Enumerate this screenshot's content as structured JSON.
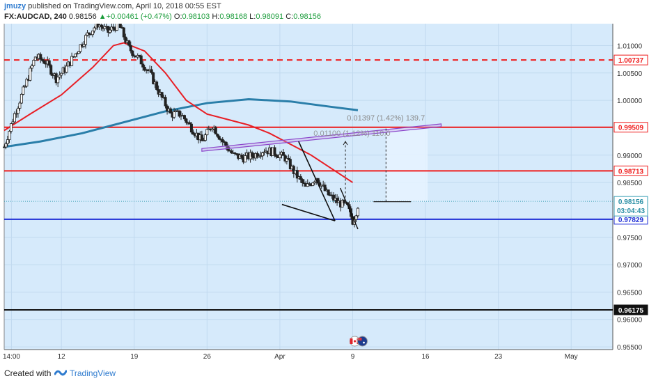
{
  "header": {
    "author": "jmuzy",
    "published": "published on TradingView.com, April 10, 2018 00:55 EST",
    "symbol": "FX:AUDCAD, 240",
    "last": "0.98156",
    "change": "+0.00461 (+0.47%)",
    "o_label": "O:",
    "o_value": "0.98103",
    "h_label": "H:",
    "h_value": "0.98168",
    "l_label": "L:",
    "l_value": "0.98091",
    "c_label": "C:",
    "c_value": "0.98156"
  },
  "colors": {
    "plot_bg": "#d6eafb",
    "grid": "#c1d9ef",
    "red": "#ef1c1c",
    "blue": "#1f2ed6",
    "black": "#111111",
    "ma_red": "#e81e25",
    "ma_teal": "#2a7ea9",
    "channel": "#8a44c9",
    "candle_up": "#ffffff",
    "candle_down": "#222222"
  },
  "footer": {
    "created": "Created with",
    "brand": "TradingView"
  },
  "chart_data": {
    "type": "line",
    "symbol": "FX:AUDCAD",
    "interval": "240",
    "grid": true,
    "ylim": [
      0.9545,
      1.014
    ],
    "y_ticks": [
      "1.01000",
      "1.00500",
      "1.00000",
      "0.99500",
      "0.99000",
      "0.98500",
      "0.97500",
      "0.97000",
      "0.96500",
      "0.96000",
      "0.95500"
    ],
    "x_ticks": [
      "14:00",
      "12",
      "19",
      "26",
      "Apr",
      "9",
      "16",
      "23",
      "May"
    ],
    "x_tick_days": [
      7.2,
      12,
      19,
      26,
      33,
      40,
      47,
      54,
      61
    ],
    "x_range_days": [
      6.5,
      65.0
    ],
    "price_series": {
      "name": "AUDCAD",
      "x": [
        6.5,
        7.5,
        8.5,
        9.5,
        10.5,
        11.5,
        12.5,
        13.5,
        14.5,
        15.5,
        16.5,
        17.5,
        18.5,
        19.5,
        20.5,
        21.5,
        22.5,
        23.5,
        24.5,
        25.5,
        26.5,
        27.5,
        28.5,
        29.5,
        30.5,
        31.5,
        32.5,
        33.5,
        34.5,
        35.5,
        36.5,
        37.5,
        38.5,
        39.5,
        40.0,
        40.3,
        40.6
      ],
      "y": [
        0.9915,
        0.9975,
        1.0025,
        1.008,
        1.007,
        1.004,
        1.006,
        1.009,
        1.012,
        1.014,
        1.0125,
        1.014,
        1.0095,
        1.0075,
        1.005,
        1.001,
        0.9975,
        0.9975,
        0.995,
        0.9925,
        0.9955,
        0.9925,
        0.99,
        0.9895,
        0.99,
        0.991,
        0.9905,
        0.9895,
        0.9865,
        0.984,
        0.986,
        0.983,
        0.9815,
        0.9805,
        0.978,
        0.9795,
        0.9816
      ]
    },
    "ma_fast": {
      "x": [
        6.5,
        9,
        12,
        15,
        17,
        18,
        20,
        22,
        24,
        26,
        28,
        30,
        32,
        34,
        36,
        38,
        40
      ],
      "y": [
        0.9945,
        0.9975,
        1.001,
        1.006,
        1.01,
        1.0105,
        1.009,
        1.005,
        1.0,
        0.9975,
        0.9965,
        0.9955,
        0.994,
        0.992,
        0.99,
        0.9875,
        0.985
      ]
    },
    "ma_slow": {
      "x": [
        6.5,
        10,
        14,
        18,
        22,
        26,
        30,
        34,
        38,
        40.5
      ],
      "y": [
        0.9915,
        0.9925,
        0.994,
        0.996,
        0.998,
        0.9995,
        1.0002,
        0.9998,
        0.9988,
        0.9982
      ]
    },
    "horizontal_levels": [
      {
        "price": 1.00737,
        "label": "1.00737",
        "style": "dashed",
        "color": "#ef1c1c"
      },
      {
        "price": 0.99509,
        "label": "0.99509",
        "style": "solid",
        "color": "#ef1c1c"
      },
      {
        "price": 0.98713,
        "label": "0.98713",
        "style": "solid",
        "color": "#ef1c1c"
      },
      {
        "price": 0.97829,
        "label": "0.97829",
        "style": "solid",
        "color": "#1f2ed6"
      },
      {
        "price": 0.96175,
        "label": "0.96175",
        "style": "solid",
        "color": "#111111"
      }
    ],
    "current_price": {
      "label": "0.98156",
      "price": 0.98156,
      "countdown": "03:04:43"
    },
    "annotations": [
      {
        "text": "0.01397 (1.42%) 139.7"
      },
      {
        "text": "0.01100 (1.12%) 110.0"
      }
    ],
    "drawings": {
      "channel": {
        "x": [
          25.5,
          48.5
        ],
        "y_low": [
          0.9907,
          0.9952
        ],
        "y_high": [
          0.9912,
          0.9957
        ]
      },
      "wedge_upper": {
        "x": [
          34.8,
          38.3
        ],
        "y": [
          0.9925,
          0.978
        ]
      },
      "wedge_lower": {
        "x": [
          33.2,
          38.3
        ],
        "y": [
          0.981,
          0.978
        ]
      },
      "drop_line": {
        "x": [
          38.8,
          40.5
        ],
        "y": [
          0.984,
          0.9765
        ]
      },
      "measure_short": {
        "x": 39.3,
        "y": [
          0.9815,
          0.9925
        ]
      },
      "measure_long": {
        "x": 43.2,
        "y": [
          0.9815,
          0.9952
        ]
      },
      "measure_base": {
        "x": [
          42.0,
          45.6
        ],
        "y": 0.9815
      },
      "projection_box": {
        "x": [
          43.2,
          47.2
        ],
        "y": [
          0.9815,
          0.9952
        ]
      }
    }
  }
}
